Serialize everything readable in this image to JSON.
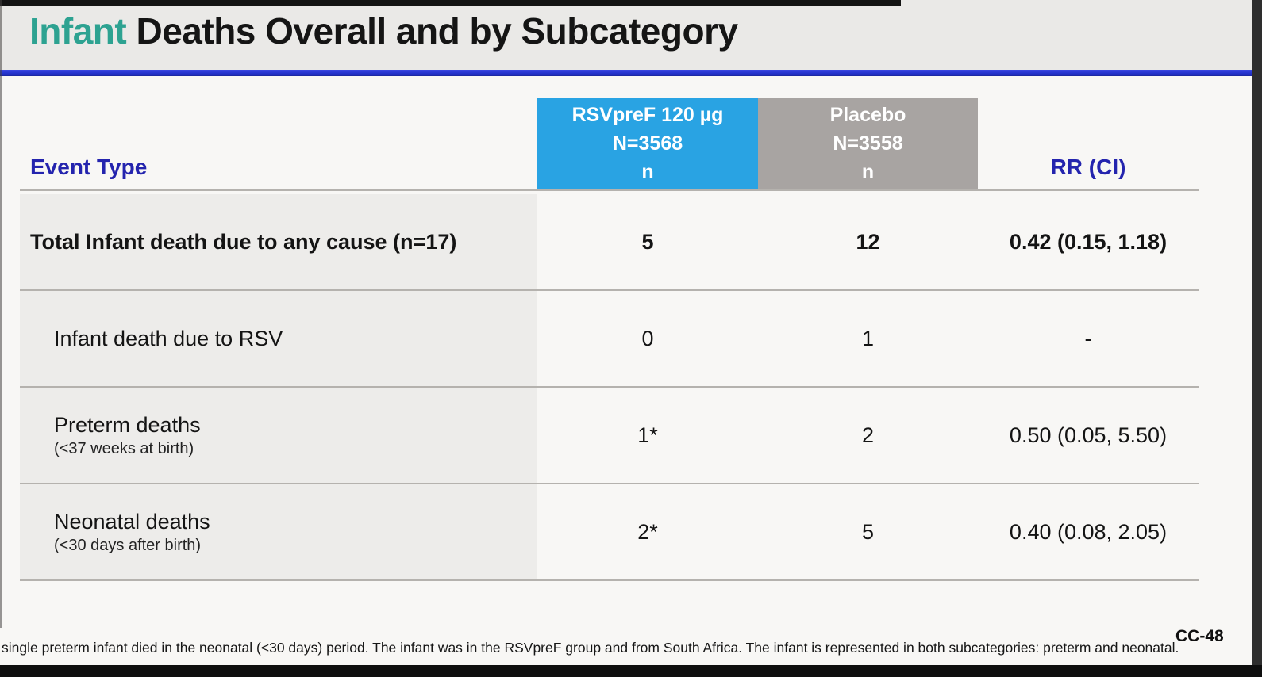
{
  "slide": {
    "title": {
      "highlight": "Infant",
      "rest": " Deaths Overall and by Subcategory"
    },
    "footnote": "single preterm infant died in the neonatal (<30 days) period. The infant was in the RSVpreF group and from South Africa. The infant is represented in both subcategories: preterm and neonatal.",
    "page_number": "CC-48"
  },
  "colors": {
    "title_accent_teal": "#2da291",
    "header_text_navy": "#2424ae",
    "treatment_header_blue": "#29a3e3",
    "placebo_header_gray": "#a8a4a2",
    "row_label_background": "#edecea",
    "title_rule_blue": "#2433cd"
  },
  "table": {
    "header": {
      "event_type": "Event Type",
      "rsvpref": {
        "line1": "RSVpreF 120 µg",
        "line2": "N=3568",
        "line3": "n"
      },
      "placebo": {
        "line1": "Placebo",
        "line2": "N=3558",
        "line3": "n"
      },
      "rr": "RR (CI)"
    },
    "rows": [
      {
        "label": "Total Infant death due to any cause (n=17)",
        "sublabel": "",
        "rsvpref": "5",
        "placebo": "12",
        "rr": "0.42 (0.15, 1.18)"
      },
      {
        "label": "Infant death due to RSV",
        "sublabel": "",
        "rsvpref": "0",
        "placebo": "1",
        "rr": "-"
      },
      {
        "label": "Preterm deaths",
        "sublabel": "(<37 weeks at birth)",
        "rsvpref": "1*",
        "placebo": "2",
        "rr": "0.50 (0.05, 5.50)"
      },
      {
        "label": "Neonatal deaths",
        "sublabel": "(<30 days after birth)",
        "rsvpref": "2*",
        "placebo": "5",
        "rr": "0.40 (0.08, 2.05)"
      }
    ]
  }
}
